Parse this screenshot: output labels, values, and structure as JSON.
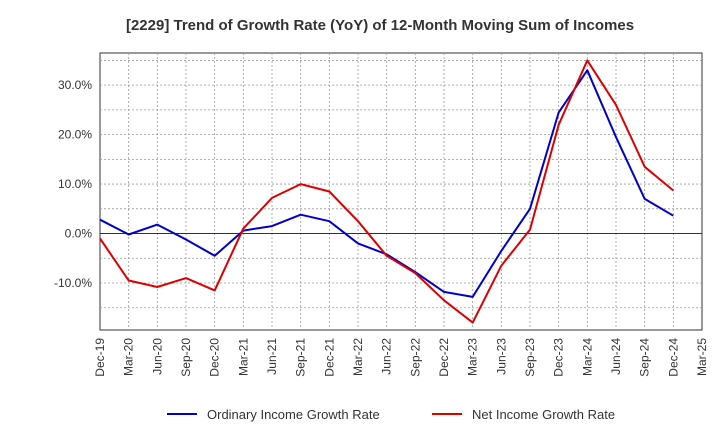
{
  "chart_data": {
    "type": "line",
    "title": "[2229]  Trend of Growth Rate (YoY) of 12-Month Moving Sum of Incomes",
    "xlabel": "",
    "ylabel": "",
    "x_ticks": [
      "Dec-19",
      "Mar-20",
      "Jun-20",
      "Sep-20",
      "Dec-20",
      "Mar-21",
      "Jun-21",
      "Sep-21",
      "Dec-21",
      "Mar-22",
      "Jun-22",
      "Sep-22",
      "Dec-22",
      "Mar-23",
      "Jun-23",
      "Sep-23",
      "Dec-23",
      "Mar-24",
      "Jun-24",
      "Sep-24",
      "Dec-24",
      "Mar-25"
    ],
    "y_ticks": [
      {
        "value": 30,
        "label": "30.0%"
      },
      {
        "value": 20,
        "label": "20.0%"
      },
      {
        "value": 10,
        "label": "10.0%"
      },
      {
        "value": 0,
        "label": "0.0%"
      },
      {
        "value": -10,
        "label": "-10.0%"
      }
    ],
    "ylim": [
      -19.5,
      36.5
    ],
    "grid": true,
    "legend_position": "bottom",
    "series": [
      {
        "name": "Ordinary Income Growth Rate",
        "color": "#0000cc",
        "values": [
          2.8,
          -0.2,
          1.8,
          -1.2,
          -4.5,
          0.6,
          1.5,
          3.8,
          2.5,
          -2.0,
          -4.2,
          -7.8,
          -11.8,
          -12.8,
          -3.5,
          5.0,
          24.5,
          33.0,
          19.5,
          7.0,
          3.6
        ]
      },
      {
        "name": "Net Income Growth Rate",
        "color": "#dd0000",
        "values": [
          -1.0,
          -9.5,
          -10.8,
          -9.0,
          -11.5,
          1.0,
          7.2,
          10.0,
          8.5,
          2.5,
          -4.5,
          -8.0,
          -13.5,
          -18.0,
          -6.5,
          0.8,
          22.0,
          35.0,
          26.0,
          13.5,
          8.7
        ]
      }
    ]
  }
}
